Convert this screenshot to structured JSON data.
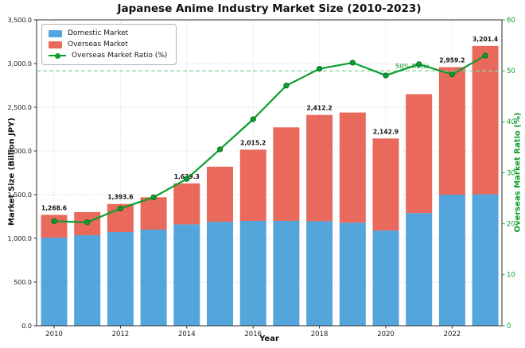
{
  "title": "Japanese Anime Industry Market Size (2010-2023)",
  "axes": {
    "x_label": "Year",
    "y_left_label": "Market Size (Billion JPY)",
    "y_right_label": "Overseas Market Ratio (%)",
    "y_left_ticks": [
      "0.0",
      "500.0",
      "1,000.0",
      "1,500.0",
      "2,000.0",
      "2,500.0",
      "3,000.0",
      "3,500.0"
    ],
    "y_right_ticks": [
      "0",
      "10",
      "20",
      "30",
      "40",
      "50",
      "60"
    ],
    "x_ticks": [
      "2010",
      "2012",
      "2014",
      "2016",
      "2018",
      "2020",
      "2022"
    ]
  },
  "legend": {
    "items": [
      {
        "label": "Domestic Market",
        "color": "#54a5db",
        "type": "patch"
      },
      {
        "label": "Overseas Market",
        "color": "#e9695c",
        "type": "patch"
      },
      {
        "label": "Overseas Market Ratio (%)",
        "color": "#0a9e2c",
        "type": "line"
      }
    ]
  },
  "annotations": {
    "fifty_pct_label": "50% Ratio",
    "fifty_pct_value": 50,
    "fifty_pct_line_color": "#8fd6a0",
    "fifty_pct_text_color": "#58b570"
  },
  "colors": {
    "domestic": "#54a5db",
    "overseas": "#e9695c",
    "ratio_line": "#0a9e2c",
    "ratio_marker_edge": "#056316",
    "grid": "#c9c9c9",
    "spine": "#2e2e2e",
    "right_axis_text": "#0a9e2c",
    "tick_text": "#1a1a1a",
    "bar_label_text": "#111111"
  },
  "chart_data": {
    "type": "bar",
    "stacked": true,
    "title": "Japanese Anime Industry Market Size (2010-2023)",
    "xlabel": "Year",
    "ylabel_left": "Market Size (Billion JPY)",
    "ylabel_right": "Overseas Market Ratio (%)",
    "x": [
      2010,
      2011,
      2012,
      2013,
      2014,
      2015,
      2016,
      2017,
      2018,
      2019,
      2020,
      2021,
      2022,
      2023
    ],
    "ylim_left": [
      0,
      3500
    ],
    "ylim_right": [
      0,
      60
    ],
    "grid": true,
    "legend_position": "upper left",
    "series": [
      {
        "name": "Domestic Market",
        "type": "bar",
        "axis": "left",
        "values": [
          1008,
          1036,
          1073,
          1100,
          1160,
          1190,
          1200,
          1200,
          1196,
          1180,
          1090,
          1290,
          1500,
          1505
        ]
      },
      {
        "name": "Overseas Market",
        "type": "bar",
        "axis": "left",
        "values": [
          260.6,
          264.0,
          320.6,
          370.0,
          469.3,
          630.0,
          815.2,
          1070.0,
          1216.2,
          1260.0,
          1052.9,
          1360.0,
          1459.2,
          1696.4
        ]
      },
      {
        "name": "Overseas Market Ratio (%)",
        "type": "line",
        "axis": "right",
        "values": [
          20.5,
          20.3,
          23.0,
          25.2,
          28.8,
          34.6,
          40.5,
          47.1,
          50.4,
          51.6,
          49.1,
          51.3,
          49.3,
          53.0
        ]
      }
    ],
    "totals": [
      1268.6,
      1300.0,
      1393.6,
      1470.0,
      1629.3,
      1820.0,
      2015.2,
      2270.0,
      2412.2,
      2440.0,
      2142.9,
      2650.0,
      2959.2,
      3201.4
    ],
    "total_labels": [
      {
        "year": 2010,
        "text": "1,268.6"
      },
      {
        "year": 2012,
        "text": "1,393.6"
      },
      {
        "year": 2014,
        "text": "1,629.3"
      },
      {
        "year": 2016,
        "text": "2,015.2"
      },
      {
        "year": 2018,
        "text": "2,412.2"
      },
      {
        "year": 2020,
        "text": "2,142.9"
      },
      {
        "year": 2022,
        "text": "2,959.2"
      },
      {
        "year": 2023,
        "text": "3,201.4"
      }
    ]
  }
}
